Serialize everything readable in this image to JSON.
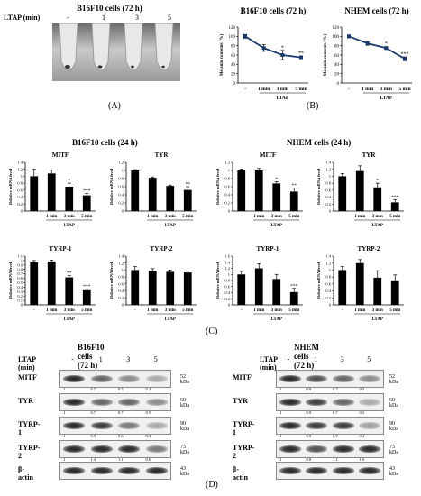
{
  "panelA": {
    "title": "B16F10 cells (72 h)",
    "row_label": "LTAP (min)",
    "lanes": [
      "-",
      "1",
      "3",
      "5"
    ],
    "label": "(A)"
  },
  "panelB": {
    "label": "(B)",
    "charts": [
      {
        "title": "B16F10 cells (72 h)",
        "ylabel": "Melanin contents (%)",
        "xcats": [
          "-",
          "1 min",
          "3 min",
          "5 min"
        ],
        "xgroup": "LTAP",
        "yticks": [
          "0",
          "20",
          "40",
          "60",
          "80",
          "100",
          "120"
        ],
        "ylim": [
          0,
          120
        ],
        "values": [
          100,
          75,
          60,
          55
        ],
        "errors": [
          4,
          7,
          10,
          3
        ],
        "sig": [
          "",
          "",
          "*",
          "**"
        ]
      },
      {
        "title": "NHEM cells (72 h)",
        "ylabel": "Melanin contents (%)",
        "xcats": [
          "-",
          "1 min",
          "3 min",
          "5 min"
        ],
        "xgroup": "LTAP",
        "yticks": [
          "0",
          "20",
          "40",
          "60",
          "80",
          "100",
          "120"
        ],
        "ylim": [
          0,
          120
        ],
        "values": [
          100,
          85,
          75,
          52
        ],
        "errors": [
          3,
          4,
          3,
          4
        ],
        "sig": [
          "",
          "",
          "*",
          "***"
        ]
      }
    ]
  },
  "panelC": {
    "label": "(C)",
    "group_titles": [
      "B16F10 cells (24 h)",
      "NHEM cells (24 h)"
    ],
    "charts": [
      {
        "title": "MITF",
        "ylabel": "Relative mRNA level",
        "yticks": [
          "0",
          "0.2",
          "0.4",
          "0.6",
          "0.8",
          "1",
          "1.2",
          "1.4"
        ],
        "ymax": 1.4,
        "values": [
          1.0,
          1.08,
          0.7,
          0.45
        ],
        "errors": [
          0.2,
          0.1,
          0.1,
          0.05
        ],
        "sig": [
          "",
          "",
          "*",
          "***"
        ]
      },
      {
        "title": "TYR",
        "ylabel": "Relative mRNA level",
        "yticks": [
          "0",
          "0.2",
          "0.4",
          "0.6",
          "0.8",
          "1",
          "1.2"
        ],
        "ymax": 1.2,
        "values": [
          1.0,
          0.82,
          0.62,
          0.52
        ],
        "errors": [
          0.02,
          0.02,
          0.02,
          0.08
        ],
        "sig": [
          "",
          "",
          "",
          "**"
        ]
      },
      {
        "title": "MITF",
        "ylabel": "Relative mRNA level",
        "yticks": [
          "0",
          "0.2",
          "0.4",
          "0.6",
          "0.8",
          "1",
          "1.2"
        ],
        "ymax": 1.2,
        "values": [
          1.0,
          1.0,
          0.68,
          0.48
        ],
        "errors": [
          0.03,
          0.05,
          0.04,
          0.09
        ],
        "sig": [
          "",
          "",
          "*",
          "**"
        ]
      },
      {
        "title": "TYR",
        "ylabel": "Relative mRNA level",
        "yticks": [
          "0",
          "0.2",
          "0.4",
          "0.6",
          "0.8",
          "1",
          "1.2",
          "1.4"
        ],
        "ymax": 1.4,
        "values": [
          1.0,
          1.15,
          0.68,
          0.25
        ],
        "errors": [
          0.08,
          0.15,
          0.12,
          0.08
        ],
        "sig": [
          "",
          "",
          "*",
          "***"
        ]
      },
      {
        "title": "TYRP-1",
        "ylabel": "Relative mRNA level",
        "yticks": [
          "0",
          "0.1",
          "0.2",
          "0.3",
          "0.4",
          "0.5",
          "0.6",
          "0.7",
          "0.8",
          "0.9",
          "1",
          "1.1"
        ],
        "ymax": 1.1,
        "values": [
          0.96,
          0.98,
          0.62,
          0.33
        ],
        "errors": [
          0.04,
          0.03,
          0.04,
          0.03
        ],
        "sig": [
          "",
          "",
          "**",
          "***"
        ]
      },
      {
        "title": "TYRP-2",
        "ylabel": "Relative mRNA level",
        "yticks": [
          "0",
          "0.2",
          "0.4",
          "0.6",
          "0.8",
          "1",
          "1.2",
          "1.4"
        ],
        "ymax": 1.4,
        "values": [
          1.0,
          0.98,
          0.95,
          0.93
        ],
        "errors": [
          0.1,
          0.06,
          0.05,
          0.04
        ],
        "sig": [
          "",
          "",
          "",
          ""
        ]
      },
      {
        "title": "TYRP-1",
        "ylabel": "Relative mRNA level",
        "yticks": [
          "0",
          "0.2",
          "0.4",
          "0.6",
          "0.8",
          "1",
          "1.2",
          "1.4",
          "1.6"
        ],
        "ymax": 1.6,
        "values": [
          1.0,
          1.2,
          0.85,
          0.42
        ],
        "errors": [
          0.1,
          0.15,
          0.15,
          0.12
        ],
        "sig": [
          "",
          "",
          "",
          "***"
        ]
      },
      {
        "title": "TYRP-2",
        "ylabel": "Relative mRNA level",
        "yticks": [
          "0",
          "0.2",
          "0.4",
          "0.6",
          "0.8",
          "1",
          "1.2",
          "1.4"
        ],
        "ymax": 1.4,
        "values": [
          1.0,
          1.2,
          0.78,
          0.68
        ],
        "errors": [
          0.1,
          0.1,
          0.2,
          0.18
        ],
        "sig": [
          "",
          "",
          "",
          ""
        ]
      }
    ],
    "xcats": [
      "-",
      "1 min",
      "3 min",
      "5 min"
    ],
    "xgroup": "LTAP"
  },
  "panelD": {
    "label": "(D)",
    "row_label": "LTAP (min)",
    "lanes": [
      "-",
      "1",
      "3",
      "5"
    ],
    "blots": [
      {
        "title": "B16F10 cells (72 h)",
        "rows": [
          {
            "protein": "MITF",
            "kda": "52 kDa",
            "quant": [
              "1",
              "0.7 ± 0.1",
              "0.5 ± 0.1",
              "0.3 ± 0.2"
            ]
          },
          {
            "protein": "TYR",
            "kda": "60 kDa",
            "quant": [
              "1",
              "0.7 ± 0.1",
              "0.7 ± 0.1",
              "0.5 ± 0.2"
            ]
          },
          {
            "protein": "TYRP-1",
            "kda": "90 kDa",
            "quant": [
              "1",
              "0.9 ± 0.1",
              "0.6 ± 0.2",
              "0.3 ± 0.1"
            ]
          },
          {
            "protein": "TYRP-2",
            "kda": "75 kDa",
            "quant": [
              "1",
              "1.4 ± 0.2",
              "1.1 ± 0.1",
              "0.6 ± 0.2"
            ]
          },
          {
            "protein": "β-actin",
            "kda": "43 kDa",
            "quant": []
          }
        ]
      },
      {
        "title": "NHEM cells (72 h)",
        "rows": [
          {
            "protein": "MITF",
            "kda": "52 kDa",
            "quant": [
              "1",
              "0.8 ± 0.2",
              "0.7 ± 0.2",
              "0.5 ± 0.1"
            ]
          },
          {
            "protein": "TYR",
            "kda": "60 kDa",
            "quant": [
              "1",
              "0.9 ± 0.1",
              "0.7 ± 0.2",
              "0.3 ± 0.1"
            ]
          },
          {
            "protein": "TYRP-1",
            "kda": "90 kDa",
            "quant": [
              "1",
              "0.9 ± 0.1",
              "0.9 ± 0.1",
              "0.4 ± 0.1"
            ]
          },
          {
            "protein": "TYRP-2",
            "kda": "75 kDa",
            "quant": [
              "1",
              "0.8 ± 0.2",
              "1.1 ± 0.1",
              "1.0 ± 0.2"
            ]
          },
          {
            "protein": "β-actin",
            "kda": "43 kDa",
            "quant": []
          }
        ]
      }
    ]
  },
  "chart_data": [
    {
      "type": "line",
      "title": "B16F10 cells (72 h)",
      "x": [
        "-",
        "1 min",
        "3 min",
        "5 min"
      ],
      "xlabel": "LTAP",
      "ylabel": "Melanin contents (%)",
      "ylim": [
        0,
        120
      ],
      "series": [
        {
          "values": [
            100,
            75,
            60,
            55
          ],
          "errors": [
            4,
            7,
            10,
            3
          ]
        }
      ]
    },
    {
      "type": "line",
      "title": "NHEM cells (72 h)",
      "x": [
        "-",
        "1 min",
        "3 min",
        "5 min"
      ],
      "xlabel": "LTAP",
      "ylabel": "Melanin contents (%)",
      "ylim": [
        0,
        120
      ],
      "series": [
        {
          "values": [
            100,
            85,
            75,
            52
          ],
          "errors": [
            3,
            4,
            3,
            4
          ]
        }
      ]
    },
    {
      "type": "bar",
      "title": "MITF",
      "categories": [
        "-",
        "1 min",
        "3 min",
        "5 min"
      ],
      "values": [
        1.0,
        1.08,
        0.7,
        0.45
      ],
      "ylabel": "Relative mRNA level",
      "ylim": [
        0,
        1.4
      ]
    },
    {
      "type": "bar",
      "title": "TYR",
      "categories": [
        "-",
        "1 min",
        "3 min",
        "5 min"
      ],
      "values": [
        1.0,
        0.82,
        0.62,
        0.52
      ],
      "ylabel": "Relative mRNA level",
      "ylim": [
        0,
        1.2
      ]
    },
    {
      "type": "bar",
      "title": "MITF",
      "categories": [
        "-",
        "1 min",
        "3 min",
        "5 min"
      ],
      "values": [
        1.0,
        1.0,
        0.68,
        0.48
      ],
      "ylabel": "Relative mRNA level",
      "ylim": [
        0,
        1.2
      ]
    },
    {
      "type": "bar",
      "title": "TYR",
      "categories": [
        "-",
        "1 min",
        "3 min",
        "5 min"
      ],
      "values": [
        1.0,
        1.15,
        0.68,
        0.25
      ],
      "ylabel": "Relative mRNA level",
      "ylim": [
        0,
        1.4
      ]
    },
    {
      "type": "bar",
      "title": "TYRP-1",
      "categories": [
        "-",
        "1 min",
        "3 min",
        "5 min"
      ],
      "values": [
        0.96,
        0.98,
        0.62,
        0.33
      ],
      "ylabel": "Relative mRNA level",
      "ylim": [
        0,
        1.1
      ]
    },
    {
      "type": "bar",
      "title": "TYRP-2",
      "categories": [
        "-",
        "1 min",
        "3 min",
        "5 min"
      ],
      "values": [
        1.0,
        0.98,
        0.95,
        0.93
      ],
      "ylabel": "Relative mRNA level",
      "ylim": [
        0,
        1.4
      ]
    },
    {
      "type": "bar",
      "title": "TYRP-1",
      "categories": [
        "-",
        "1 min",
        "3 min",
        "5 min"
      ],
      "values": [
        1.0,
        1.2,
        0.85,
        0.42
      ],
      "ylabel": "Relative mRNA level",
      "ylim": [
        0,
        1.6
      ]
    },
    {
      "type": "bar",
      "title": "TYRP-2",
      "categories": [
        "-",
        "1 min",
        "3 min",
        "5 min"
      ],
      "values": [
        1.0,
        1.2,
        0.78,
        0.68
      ],
      "ylabel": "Relative mRNA level",
      "ylim": [
        0,
        1.4
      ]
    }
  ]
}
